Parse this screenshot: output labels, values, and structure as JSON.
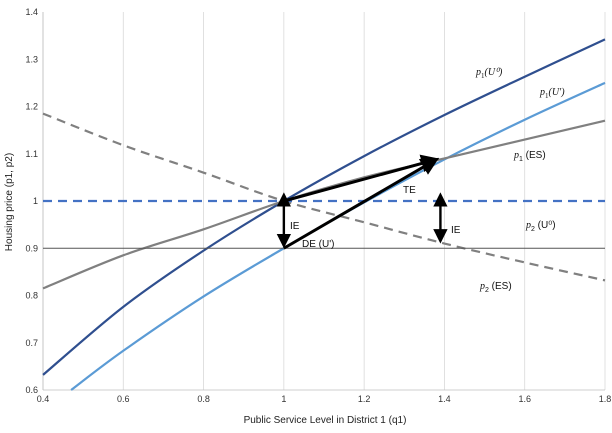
{
  "chart_data": {
    "type": "line",
    "title": "",
    "xlabel": "Public Service Level in District 1 (q1)",
    "ylabel": "Housing price (p1, p2)",
    "xlim": [
      0.4,
      1.8
    ],
    "ylim": [
      0.6,
      1.4
    ],
    "xticks": [
      "0.4",
      "0.6",
      "0.8",
      "1",
      "1.2",
      "1.4",
      "1.6",
      "1.8"
    ],
    "yticks": [
      "0.6",
      "0.7",
      "0.8",
      "0.9",
      "1",
      "1.1",
      "1.2",
      "1.3",
      "1.4"
    ],
    "grid": "vertical",
    "colors": {
      "p1_U0": "#2f4f8f",
      "p1_Uprime": "#5b9bd5",
      "p1_ES": "#808080",
      "p2_ES": "#808080",
      "p2_U0": "#4472c4",
      "baseline": "#555555",
      "arrows": "#000000"
    },
    "series": [
      {
        "name": "p1(U⁰)",
        "style": "solid",
        "color": "#2f4f8f",
        "x": [
          0.4,
          0.6,
          0.8,
          1.0,
          1.2,
          1.4,
          1.6,
          1.8
        ],
        "y": [
          0.632,
          0.776,
          0.895,
          1.0,
          1.095,
          1.182,
          1.263,
          1.342
        ]
      },
      {
        "name": "p1(U′)",
        "style": "solid",
        "color": "#5b9bd5",
        "x": [
          0.47,
          0.6,
          0.8,
          1.0,
          1.2,
          1.4,
          1.6,
          1.8
        ],
        "y": [
          0.6,
          0.683,
          0.798,
          0.9,
          0.997,
          1.088,
          1.172,
          1.25
        ]
      },
      {
        "name": "p1 (ES)",
        "style": "solid",
        "color": "#808080",
        "x": [
          0.4,
          0.6,
          0.8,
          1.0,
          1.2,
          1.4,
          1.6,
          1.8
        ],
        "y": [
          0.815,
          0.885,
          0.94,
          1.0,
          1.05,
          1.09,
          1.13,
          1.17
        ]
      },
      {
        "name": "p2 (ES)",
        "style": "dashed",
        "color": "#808080",
        "x": [
          0.4,
          0.6,
          0.8,
          1.0,
          1.2,
          1.4,
          1.6,
          1.8
        ],
        "y": [
          1.185,
          1.118,
          1.06,
          1.0,
          0.955,
          0.91,
          0.87,
          0.832
        ]
      },
      {
        "name": "p2 (U⁰)",
        "style": "dashed",
        "color": "#4472c4",
        "x": [
          0.4,
          1.8
        ],
        "y": [
          1.0,
          1.0
        ]
      },
      {
        "name": "",
        "style": "thin",
        "color": "#555555",
        "x": [
          0.4,
          1.8
        ],
        "y": [
          0.9,
          0.9
        ]
      }
    ],
    "arrows": [
      {
        "label": "",
        "from": [
          1.0,
          1.0
        ],
        "to": [
          1.38,
          1.088
        ],
        "double": false
      },
      {
        "label": "",
        "from": [
          1.0,
          0.9
        ],
        "to": [
          1.38,
          1.088
        ],
        "double": false
      },
      {
        "label": "",
        "from": [
          1.0,
          0.993
        ],
        "to": [
          1.0,
          0.905
        ],
        "double": true
      },
      {
        "label": "",
        "from": [
          1.39,
          0.993
        ],
        "to": [
          1.39,
          0.915
        ],
        "double": true
      }
    ],
    "annotations": {
      "p1_U0": {
        "main": "p",
        "sub": "1",
        "arg": "(U⁰)"
      },
      "p1_Uprime": {
        "main": "p",
        "sub": "1",
        "arg": "(U′)"
      },
      "p1_ES": {
        "main": "p",
        "sub": "1",
        "arg": " (ES)"
      },
      "p2_U0": {
        "main": "p",
        "sub": "2",
        "arg": " (U⁰)"
      },
      "p2_ES": {
        "main": "p",
        "sub": "2",
        "arg": " (ES)"
      },
      "TE": "TE",
      "DE": "DE (U')",
      "IE_left": "IE",
      "IE_right": "IE"
    }
  }
}
